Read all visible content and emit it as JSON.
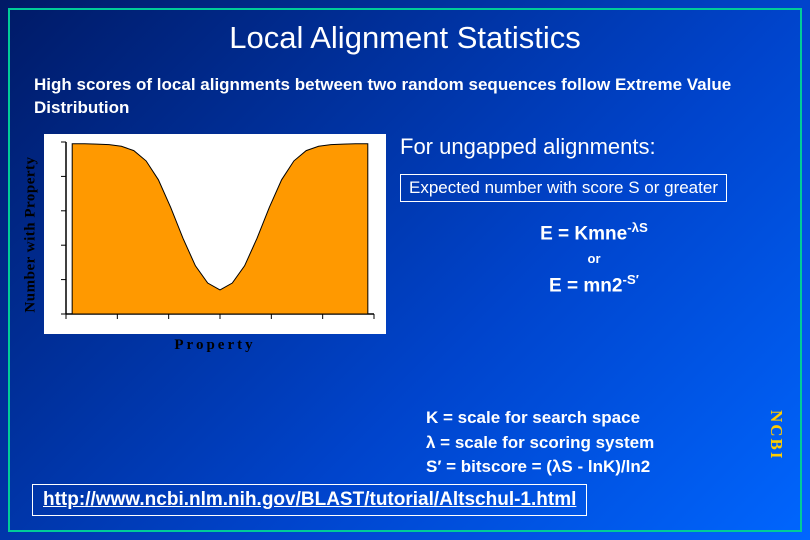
{
  "title": "Local Alignment Statistics",
  "subtitle": "High scores of local alignments between two random sequences follow Extreme Value Distribution",
  "chart": {
    "type": "area",
    "xlabel": "Property",
    "ylabel": "Number with Property",
    "background_color": "#ffffff",
    "fill_color": "#ff9900",
    "stroke_color": "#000000",
    "axis_color": "#000000",
    "xlim": [
      0,
      100
    ],
    "ylim": [
      0,
      100
    ],
    "points": [
      [
        2,
        99
      ],
      [
        6,
        99
      ],
      [
        10,
        98.8
      ],
      [
        14,
        98.5
      ],
      [
        18,
        97.5
      ],
      [
        22,
        95
      ],
      [
        26,
        89
      ],
      [
        30,
        78
      ],
      [
        34,
        62
      ],
      [
        38,
        44
      ],
      [
        42,
        28
      ],
      [
        46,
        18
      ],
      [
        50,
        14
      ],
      [
        54,
        18
      ],
      [
        58,
        28
      ],
      [
        62,
        44
      ],
      [
        66,
        62
      ],
      [
        70,
        78
      ],
      [
        74,
        89
      ],
      [
        78,
        95
      ],
      [
        82,
        97.5
      ],
      [
        86,
        98.5
      ],
      [
        90,
        98.8
      ],
      [
        94,
        99
      ],
      [
        98,
        99
      ]
    ]
  },
  "right": {
    "heading": "For ungapped alignments:",
    "expected": "Expected number with score S or greater",
    "eq1_pre": "E = Kmne",
    "eq1_sup": "-λS",
    "or": "or",
    "eq2_pre": "E = mn2",
    "eq2_sup": "-S′"
  },
  "defs": {
    "line1": "K = scale for search space",
    "line2": "λ  = scale for scoring system",
    "line3": "S′ = bitscore = (λS - lnK)/ln2"
  },
  "ncbi": "NCBI",
  "url": "http://www.ncbi.nlm.nih.gov/BLAST/tutorial/Altschul-1.html"
}
